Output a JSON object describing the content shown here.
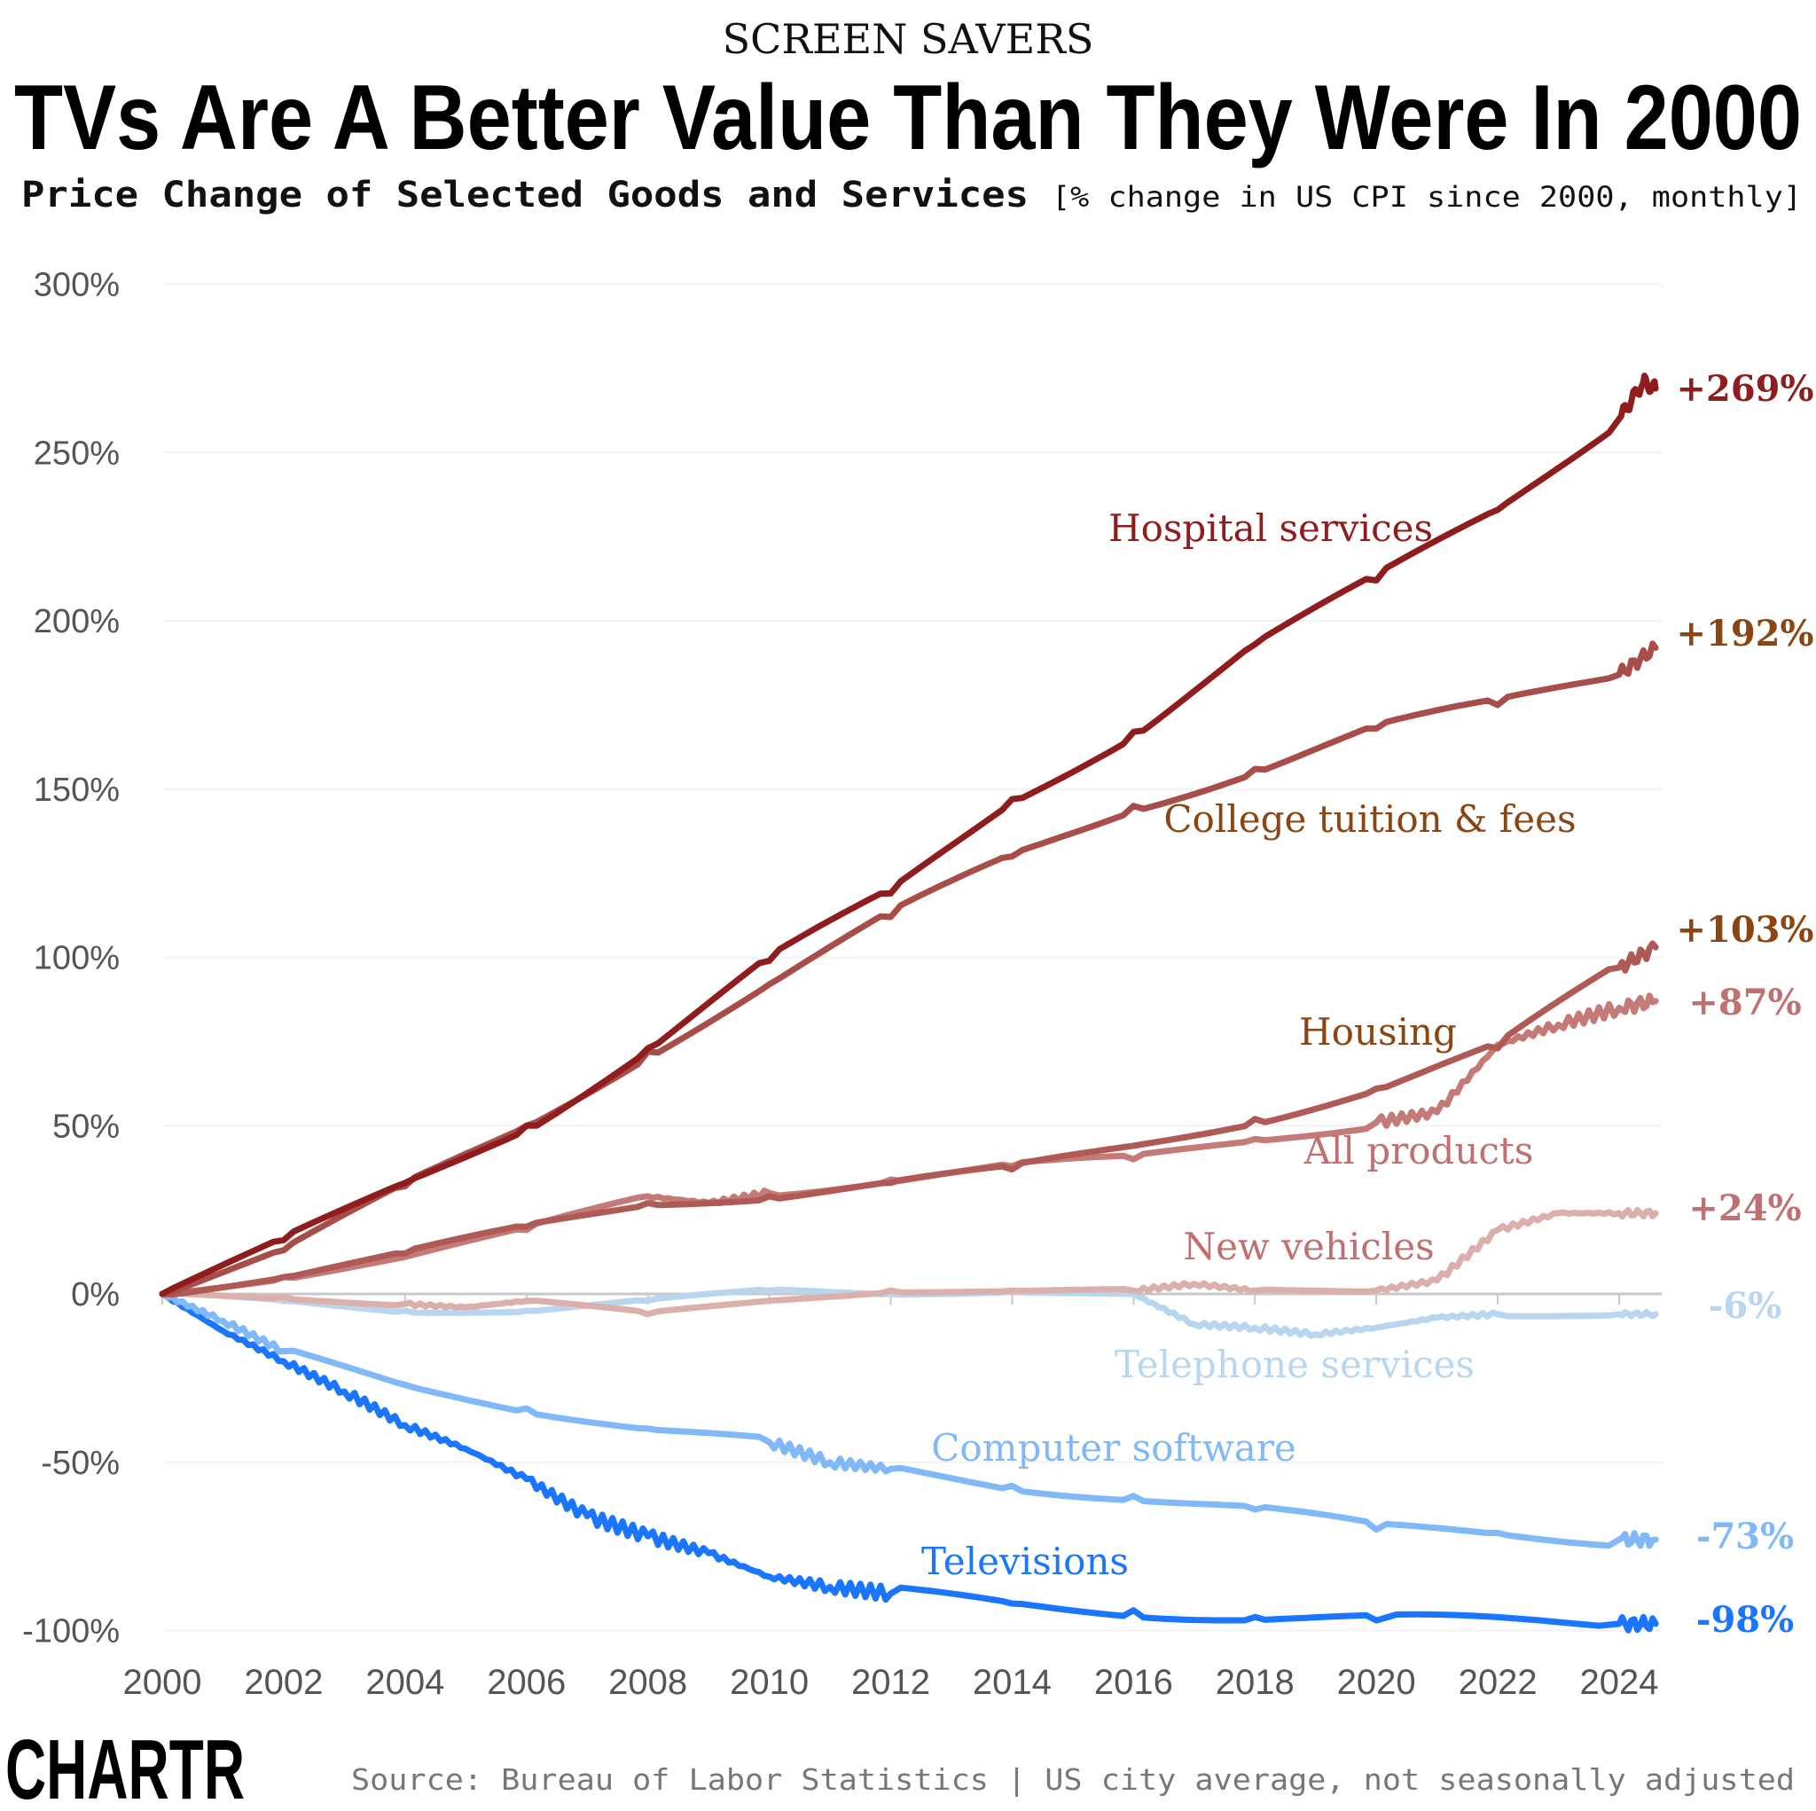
{
  "header": {
    "kicker": "SCREEN SAVERS",
    "title": "TVs Are A Better Value Than They Were In 2000",
    "subtitle_bold": "Price Change of Selected Goods and Services",
    "subtitle_note": "[% change in US CPI since 2000, monthly]"
  },
  "footer": {
    "logo": "CHARTR",
    "source": "Source: Bureau of Labor Statistics | US city average, not seasonally adjusted"
  },
  "chart_data": {
    "type": "line",
    "title": "TVs Are A Better Value Than They Were In 2000",
    "subtitle": "Price Change of Selected Goods and Services [% change in US CPI since 2000, monthly]",
    "xlabel": "",
    "ylabel": "",
    "xlim": [
      2000,
      2024.6
    ],
    "ylim": [
      -100,
      300
    ],
    "x_ticks": [
      "2000",
      "2002",
      "2004",
      "2006",
      "2008",
      "2010",
      "2012",
      "2014",
      "2016",
      "2018",
      "2020",
      "2022",
      "2024"
    ],
    "y_ticks": [
      "300%",
      "250%",
      "200%",
      "150%",
      "100%",
      "50%",
      "0%",
      "-50%",
      "-100%"
    ],
    "y_tick_values": [
      300,
      250,
      200,
      150,
      100,
      50,
      0,
      -50,
      -100
    ],
    "grid": true,
    "legend": "direct-labels",
    "series": [
      {
        "name": "Hospital services",
        "end_label": "+269%",
        "color": "#8f1d1d",
        "label_color": "#8f1d1d",
        "x": [
          2000,
          2002,
          2004,
          2006,
          2008,
          2010,
          2012,
          2014,
          2016,
          2018,
          2020,
          2022,
          2024,
          2024.4,
          2024.6
        ],
        "y": [
          0,
          16,
          33,
          50,
          73,
          99,
          119,
          147,
          167,
          193,
          212,
          233,
          260,
          271,
          269
        ]
      },
      {
        "name": "College tuition & fees",
        "end_label": "+192%",
        "color": "#a84e4a",
        "label_color": "#8b4513",
        "x": [
          2000,
          2002,
          2004,
          2006,
          2008,
          2010,
          2012,
          2014,
          2016,
          2018,
          2020,
          2022,
          2024,
          2024.6
        ],
        "y": [
          0,
          13,
          32,
          50,
          72,
          92,
          112,
          130,
          145,
          156,
          168,
          175,
          184,
          192
        ]
      },
      {
        "name": "Housing",
        "end_label": "+103%",
        "color": "#b05a55",
        "label_color": "#8b4513",
        "x": [
          2000,
          2002,
          2004,
          2006,
          2008,
          2010,
          2012,
          2014,
          2016,
          2018,
          2020,
          2022,
          2024,
          2024.6
        ],
        "y": [
          0,
          5,
          12,
          20,
          27,
          29,
          33,
          37,
          44,
          52,
          61,
          73,
          97,
          103
        ]
      },
      {
        "name": "All products",
        "end_label": "+87%",
        "color": "#c47a76",
        "label_color": "#c07070",
        "x": [
          2000,
          2002,
          2004,
          2006,
          2008,
          2009,
          2010,
          2012,
          2014,
          2016,
          2018,
          2020,
          2021,
          2022,
          2023,
          2024,
          2024.6
        ],
        "y": [
          0,
          5,
          11,
          19,
          29,
          27,
          30,
          34,
          38,
          40,
          46,
          51,
          54,
          74,
          80,
          85,
          87
        ]
      },
      {
        "name": "New vehicles",
        "end_label": "+24%",
        "color": "#dbb0ac",
        "label_color": "#c07070",
        "x": [
          2000,
          2002,
          2004,
          2005,
          2006,
          2008,
          2010,
          2012,
          2014,
          2016,
          2017,
          2018,
          2020,
          2021,
          2022,
          2023,
          2024,
          2024.6
        ],
        "y": [
          0,
          -1,
          -3,
          -4,
          -2,
          -6,
          -2,
          1,
          1,
          1,
          3,
          1,
          1,
          4,
          19,
          24,
          24,
          24
        ]
      },
      {
        "name": "Telephone services",
        "end_label": "-6%",
        "color": "#b9d6f0",
        "label_color": "#b9d6f0",
        "x": [
          2000,
          2002,
          2004,
          2006,
          2008,
          2010,
          2012,
          2014,
          2016,
          2017,
          2018,
          2019,
          2020,
          2021,
          2022,
          2024,
          2024.6
        ],
        "y": [
          0,
          -2,
          -5,
          -5,
          -2,
          1,
          0,
          1,
          0,
          -9,
          -10,
          -12,
          -10,
          -7,
          -6,
          -6,
          -6
        ]
      },
      {
        "name": "Computer software",
        "end_label": "-73%",
        "color": "#80b8f8",
        "label_color": "#80b8f8",
        "x": [
          2000,
          2001,
          2002,
          2004,
          2006,
          2008,
          2010,
          2011,
          2012,
          2014,
          2016,
          2018,
          2020,
          2022,
          2024,
          2024.6
        ],
        "y": [
          0,
          -8,
          -17,
          -27,
          -34,
          -40,
          -44,
          -50,
          -52,
          -57,
          -60,
          -64,
          -70,
          -71,
          -73,
          -73
        ]
      },
      {
        "name": "Televisions",
        "end_label": "-98%",
        "color": "#1a75ff",
        "label_color": "#1a75ff",
        "x": [
          2000,
          2001,
          2002,
          2003,
          2004,
          2005,
          2006,
          2007,
          2008,
          2009,
          2010,
          2011,
          2012,
          2014,
          2016,
          2018,
          2020,
          2024,
          2024.6
        ],
        "y": [
          0,
          -11,
          -20,
          -29,
          -39,
          -46,
          -55,
          -66,
          -72,
          -77,
          -84,
          -87,
          -89,
          -92,
          -94,
          -96,
          -97,
          -98,
          -98
        ]
      }
    ]
  }
}
